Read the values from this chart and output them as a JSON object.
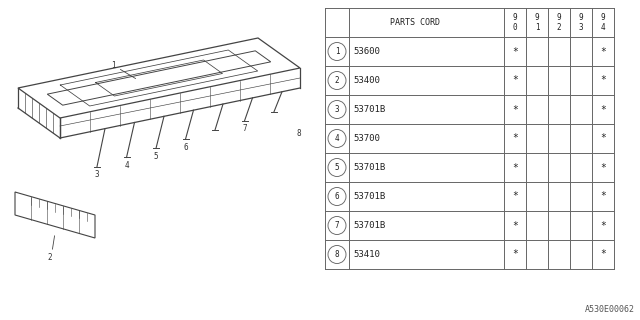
{
  "bg_color": "#ffffff",
  "line_color": "#444444",
  "table_line_color": "#666666",
  "table_header": "PARTS CORD",
  "year_labels": [
    "9\n0",
    "9\n1",
    "9\n2",
    "9\n3",
    "9\n4"
  ],
  "parts": [
    {
      "num": 1,
      "code": "53600",
      "cols": [
        "*",
        "",
        "",
        "",
        "*"
      ]
    },
    {
      "num": 2,
      "code": "53400",
      "cols": [
        "*",
        "",
        "",
        "",
        "*"
      ]
    },
    {
      "num": 3,
      "code": "53701B",
      "cols": [
        "*",
        "",
        "",
        "",
        "*"
      ]
    },
    {
      "num": 4,
      "code": "53700",
      "cols": [
        "*",
        "",
        "",
        "",
        "*"
      ]
    },
    {
      "num": 5,
      "code": "53701B",
      "cols": [
        "*",
        "",
        "",
        "",
        "*"
      ]
    },
    {
      "num": 6,
      "code": "53701B",
      "cols": [
        "*",
        "",
        "",
        "",
        "*"
      ]
    },
    {
      "num": 7,
      "code": "53701B",
      "cols": [
        "*",
        "",
        "",
        "",
        "*"
      ]
    },
    {
      "num": 8,
      "code": "53410",
      "cols": [
        "*",
        "",
        "",
        "",
        "*"
      ]
    }
  ],
  "watermark": "A530E00062"
}
